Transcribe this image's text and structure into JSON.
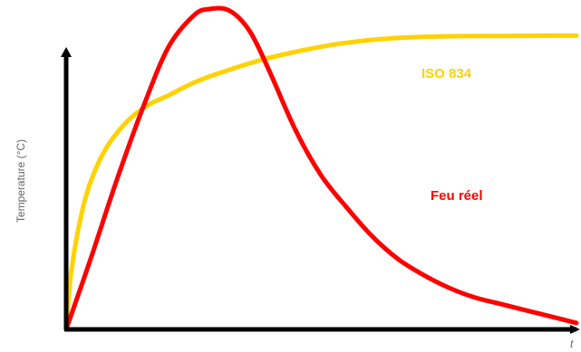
{
  "chart_data": {
    "type": "line",
    "title": "",
    "ylabel": "Temperature (°C)",
    "xlabel": "t",
    "xlim": [
      0,
      100
    ],
    "ylim": [
      0,
      100
    ],
    "grid": false,
    "series": [
      {
        "name": "ISO 834",
        "color": "#ffd200",
        "x": [
          0,
          1,
          3,
          5,
          8,
          12,
          16,
          20,
          25,
          30,
          38,
          46,
          55,
          65,
          75,
          85,
          95,
          100
        ],
        "y": [
          0,
          18,
          36,
          47,
          57,
          65,
          70,
          73,
          77,
          80,
          84,
          87,
          89.5,
          91,
          91.5,
          91.6,
          91.7,
          91.7
        ]
      },
      {
        "name": "Feu réel",
        "color": "#ff0000",
        "x": [
          0,
          5,
          10,
          15,
          20,
          25,
          28,
          32,
          36,
          40,
          45,
          50,
          55,
          60,
          65,
          70,
          75,
          80,
          85,
          90,
          95,
          100
        ],
        "y": [
          0,
          23,
          47,
          69,
          88,
          98,
          100,
          99.5,
          93,
          80,
          62,
          48,
          38,
          29,
          22,
          17,
          13,
          10,
          8,
          6,
          4,
          2
        ]
      }
    ]
  }
}
